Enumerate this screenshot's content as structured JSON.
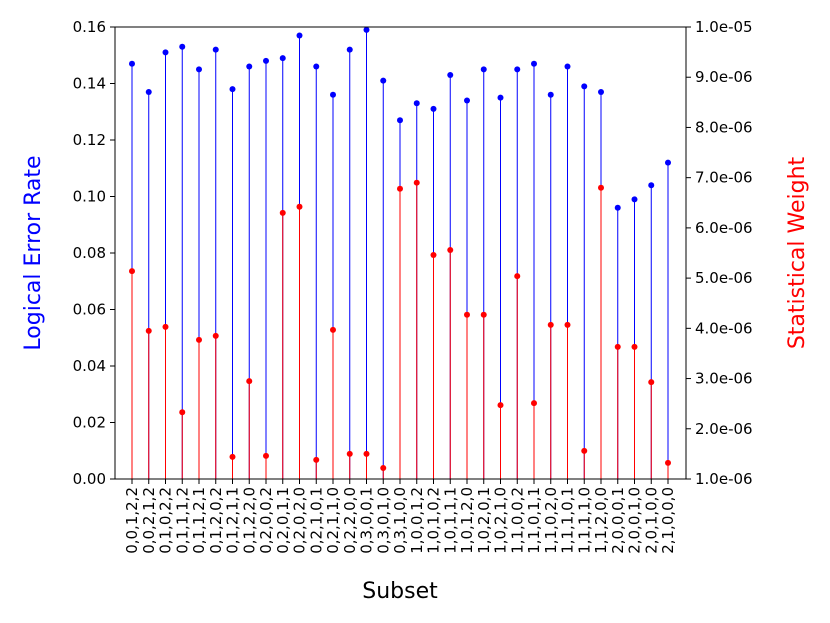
{
  "chart_data": {
    "type": "stem",
    "xlabel": "Subset",
    "ylabel": "Logical Error Rate",
    "y2label": "Statistical Weight",
    "categories": [
      "0,0,1,2,2",
      "0,0,2,1,2",
      "0,1,0,2,2",
      "0,1,1,1,2",
      "0,1,1,2,1",
      "0,1,2,0,2",
      "0,1,2,1,1",
      "0,1,2,2,0",
      "0,2,0,0,2",
      "0,2,0,1,1",
      "0,2,0,2,0",
      "0,2,1,0,1",
      "0,2,1,1,0",
      "0,2,2,0,0",
      "0,3,0,0,1",
      "0,3,0,1,0",
      "0,3,1,0,0",
      "1,0,0,1,2",
      "1,0,1,0,2",
      "1,0,1,1,1",
      "1,0,1,2,0",
      "1,0,2,0,1",
      "1,0,2,1,0",
      "1,1,0,0,2",
      "1,1,0,1,1",
      "1,1,0,2,0",
      "1,1,1,0,1",
      "1,1,1,1,0",
      "1,1,2,0,0",
      "2,0,0,0,1",
      "2,0,0,1,0",
      "2,0,1,0,0",
      "2,1,0,0,0"
    ],
    "series": [
      {
        "name": "Logical Error Rate",
        "color": "#0000ff",
        "axis": "y",
        "values": [
          0.147,
          0.137,
          0.151,
          0.153,
          0.145,
          0.152,
          0.138,
          0.146,
          0.148,
          0.149,
          0.157,
          0.146,
          0.136,
          0.152,
          0.159,
          0.141,
          0.127,
          0.133,
          0.131,
          0.143,
          0.134,
          0.145,
          0.135,
          0.145,
          0.147,
          0.136,
          0.146,
          0.139,
          0.137,
          0.096,
          0.099,
          0.104,
          0.112
        ]
      },
      {
        "name": "Statistical Weight",
        "color": "#ff0000",
        "axis": "y2",
        "values": [
          5.14e-06,
          3.95e-06,
          4.03e-06,
          2.33e-06,
          3.77e-06,
          3.85e-06,
          1.44e-06,
          2.95e-06,
          1.46e-06,
          6.3e-06,
          6.42e-06,
          1.38e-06,
          3.97e-06,
          1.5e-06,
          1.5e-06,
          1.22e-06,
          6.78e-06,
          6.9e-06,
          5.46e-06,
          5.56e-06,
          4.27e-06,
          4.27e-06,
          2.47e-06,
          5.04e-06,
          2.51e-06,
          4.07e-06,
          4.07e-06,
          1.56e-06,
          6.8e-06,
          3.63e-06,
          3.63e-06,
          2.93e-06,
          1.32e-06
        ]
      }
    ],
    "ylim": [
      0,
      0.16
    ],
    "yticks": [
      {
        "value": 0,
        "label": "0.00"
      },
      {
        "value": 0.02,
        "label": "0.02"
      },
      {
        "value": 0.04,
        "label": "0.04"
      },
      {
        "value": 0.06,
        "label": "0.06"
      },
      {
        "value": 0.08,
        "label": "0.08"
      },
      {
        "value": 0.1,
        "label": "0.10"
      },
      {
        "value": 0.12,
        "label": "0.12"
      },
      {
        "value": 0.14,
        "label": "0.14"
      },
      {
        "value": 0.16,
        "label": "0.16"
      }
    ],
    "y2lim": [
      1e-06,
      1e-05
    ],
    "y2ticks": [
      {
        "value": 1e-06,
        "label": "1.0e-06"
      },
      {
        "value": 2e-06,
        "label": "2.0e-06"
      },
      {
        "value": 3e-06,
        "label": "3.0e-06"
      },
      {
        "value": 4e-06,
        "label": "4.0e-06"
      },
      {
        "value": 5e-06,
        "label": "5.0e-06"
      },
      {
        "value": 6e-06,
        "label": "6.0e-06"
      },
      {
        "value": 7e-06,
        "label": "7.0e-06"
      },
      {
        "value": 8e-06,
        "label": "8.0e-06"
      },
      {
        "value": 9e-06,
        "label": "9.0e-06"
      },
      {
        "value": 1e-05,
        "label": "1.0e-05"
      }
    ]
  }
}
